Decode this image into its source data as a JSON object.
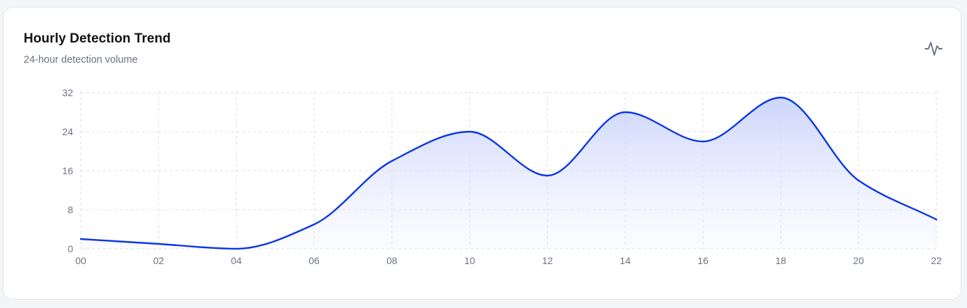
{
  "card": {
    "title": "Hourly Detection Trend",
    "subtitle": "24-hour detection volume",
    "icon": "activity-icon"
  },
  "colors": {
    "line": "#0b35e6",
    "area_top": "#c9d3fb",
    "grid": "#dcdfe5",
    "tick_text": "#6b7280"
  },
  "chart_data": {
    "type": "area",
    "title": "Hourly Detection Trend",
    "subtitle": "24-hour detection volume",
    "xlabel": "",
    "ylabel": "",
    "x": [
      "00",
      "02",
      "04",
      "06",
      "08",
      "10",
      "12",
      "14",
      "16",
      "18",
      "20",
      "22"
    ],
    "series": [
      {
        "values": [
          2,
          1,
          0,
          5,
          18,
          24,
          15,
          28,
          22,
          31,
          14,
          6
        ]
      }
    ],
    "yticks": [
      0,
      8,
      16,
      24,
      32
    ],
    "ylim": [
      0,
      32
    ],
    "grid": true,
    "grid_style": "dashed",
    "legend": "none",
    "curve": "smooth"
  }
}
